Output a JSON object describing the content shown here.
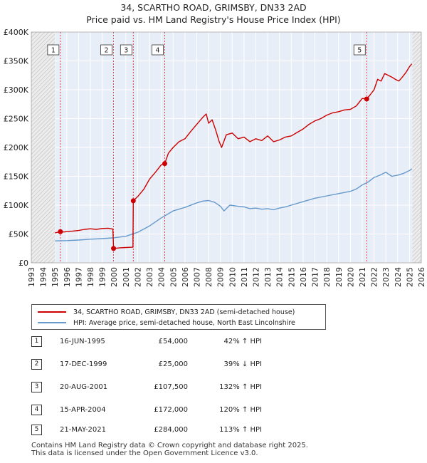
{
  "chart_data": {
    "type": "line",
    "title": "34, SCARTHO ROAD, GRIMSBY, DN33 2AD",
    "subtitle": "Price paid vs. HM Land Registry's House Price Index (HPI)",
    "xlabel": "",
    "ylabel": "",
    "xlim": [
      1993,
      2026
    ],
    "ylim": [
      0,
      400000
    ],
    "x_ticks": [
      "1993",
      "1994",
      "1995",
      "1996",
      "1997",
      "1998",
      "1999",
      "2000",
      "2001",
      "2002",
      "2003",
      "2004",
      "2005",
      "2006",
      "2007",
      "2008",
      "2009",
      "2010",
      "2011",
      "2012",
      "2013",
      "2014",
      "2015",
      "2016",
      "2017",
      "2018",
      "2019",
      "2020",
      "2021",
      "2022",
      "2023",
      "2024",
      "2025",
      "2026"
    ],
    "y_ticks": [
      {
        "value": 0,
        "label": "£0"
      },
      {
        "value": 50000,
        "label": "£50K"
      },
      {
        "value": 100000,
        "label": "£100K"
      },
      {
        "value": 150000,
        "label": "£150K"
      },
      {
        "value": 200000,
        "label": "£200K"
      },
      {
        "value": 250000,
        "label": "£250K"
      },
      {
        "value": 300000,
        "label": "£300K"
      },
      {
        "value": 350000,
        "label": "£350K"
      },
      {
        "value": 400000,
        "label": "£400K"
      }
    ],
    "hatched_ranges": [
      [
        1993,
        1995.0
      ],
      [
        2025.25,
        2026
      ]
    ],
    "sales": [
      {
        "n": "1",
        "x": 1995.46,
        "y": 54000
      },
      {
        "n": "2",
        "x": 1999.96,
        "y": 25000
      },
      {
        "n": "3",
        "x": 2001.63,
        "y": 107500
      },
      {
        "n": "4",
        "x": 2004.29,
        "y": 172000
      },
      {
        "n": "5",
        "x": 2021.38,
        "y": 284000
      }
    ],
    "series": [
      {
        "name": "34, SCARTHO ROAD, GRIMSBY, DN33 2AD (semi-detached house)",
        "color": "#cc0000",
        "x": [
          1995.0,
          1995.46,
          1995.8,
          1996.0,
          1996.5,
          1997.0,
          1997.5,
          1998.0,
          1998.5,
          1999.0,
          1999.5,
          1999.9,
          1999.96,
          2000.5,
          2001.0,
          2001.5,
          2001.6,
          2001.63,
          2002.0,
          2002.5,
          2003.0,
          2003.5,
          2004.0,
          2004.29,
          2004.6,
          2005.0,
          2005.5,
          2006.0,
          2006.5,
          2007.0,
          2007.5,
          2007.8,
          2008.0,
          2008.3,
          2008.6,
          2008.9,
          2009.1,
          2009.5,
          2010.0,
          2010.5,
          2011.0,
          2011.5,
          2012.0,
          2012.5,
          2013.0,
          2013.5,
          2014.0,
          2014.5,
          2015.0,
          2015.5,
          2016.0,
          2016.5,
          2017.0,
          2017.5,
          2018.0,
          2018.5,
          2019.0,
          2019.5,
          2020.0,
          2020.5,
          2021.0,
          2021.38,
          2021.7,
          2022.0,
          2022.3,
          2022.6,
          2022.9,
          2023.2,
          2023.5,
          2023.8,
          2024.1,
          2024.4,
          2024.7,
          2025.0,
          2025.2
        ],
        "y": [
          52000,
          54000,
          53500,
          54500,
          55000,
          56000,
          58000,
          59000,
          58000,
          59500,
          60000,
          58500,
          25000,
          26000,
          26500,
          27000,
          27000,
          107500,
          115000,
          127000,
          145000,
          157000,
          170000,
          172000,
          190000,
          200000,
          210000,
          215000,
          228000,
          240000,
          252000,
          258000,
          242000,
          248000,
          230000,
          210000,
          200000,
          222000,
          225000,
          215000,
          218000,
          210000,
          215000,
          212000,
          220000,
          210000,
          213000,
          218000,
          220000,
          226000,
          232000,
          240000,
          246000,
          250000,
          256000,
          260000,
          262000,
          265000,
          266000,
          272000,
          285000,
          284000,
          292000,
          300000,
          318000,
          315000,
          328000,
          325000,
          322000,
          318000,
          315000,
          322000,
          330000,
          340000,
          345000
        ]
      },
      {
        "name": "HPI: Average price, semi-detached house, North East Lincolnshire",
        "color": "#6699cc",
        "x": [
          1995.0,
          1996.0,
          1997.0,
          1998.0,
          1999.0,
          2000.0,
          2001.0,
          2002.0,
          2003.0,
          2004.0,
          2005.0,
          2006.0,
          2007.0,
          2007.5,
          2008.0,
          2008.5,
          2009.0,
          2009.3,
          2009.8,
          2010.5,
          2011.0,
          2011.5,
          2012.0,
          2012.5,
          2013.0,
          2013.5,
          2014.0,
          2014.5,
          2015.0,
          2016.0,
          2017.0,
          2018.0,
          2019.0,
          2020.0,
          2020.5,
          2021.0,
          2021.5,
          2022.0,
          2022.5,
          2023.0,
          2023.5,
          2024.0,
          2024.5,
          2025.0,
          2025.2
        ],
        "y": [
          38000,
          38500,
          39500,
          41000,
          42000,
          43500,
          46000,
          53000,
          64000,
          78000,
          90000,
          96000,
          104000,
          107000,
          108000,
          105000,
          98000,
          90000,
          100000,
          98000,
          97000,
          94000,
          95000,
          93000,
          94000,
          92000,
          95000,
          97000,
          100000,
          106000,
          112000,
          116000,
          120000,
          124000,
          128000,
          135000,
          140000,
          148000,
          152000,
          157000,
          150000,
          152000,
          155000,
          160000,
          163000
        ]
      }
    ]
  },
  "legend": {
    "property_label": "34, SCARTHO ROAD, GRIMSBY, DN33 2AD (semi-detached house)",
    "hpi_label": "HPI: Average price, semi-detached house, North East Lincolnshire"
  },
  "sales_table": [
    {
      "num": "1",
      "date": "16-JUN-1995",
      "price": "£54,000",
      "hpi": "42% ↑ HPI"
    },
    {
      "num": "2",
      "date": "17-DEC-1999",
      "price": "£25,000",
      "hpi": "39% ↓ HPI"
    },
    {
      "num": "3",
      "date": "20-AUG-2001",
      "price": "£107,500",
      "hpi": "132% ↑ HPI"
    },
    {
      "num": "4",
      "date": "15-APR-2004",
      "price": "£172,000",
      "hpi": "120% ↑ HPI"
    },
    {
      "num": "5",
      "date": "21-MAY-2021",
      "price": "£284,000",
      "hpi": "113% ↑ HPI"
    }
  ],
  "footer": {
    "line1": "Contains HM Land Registry data © Crown copyright and database right 2025.",
    "line2": "This data is licensed under the Open Government Licence v3.0."
  },
  "colors": {
    "property": "#cc0000",
    "hpi": "#6699cc",
    "plot_bg": "#e8eef7",
    "grid": "#ffffff",
    "sale_vline": "#dd4444"
  }
}
